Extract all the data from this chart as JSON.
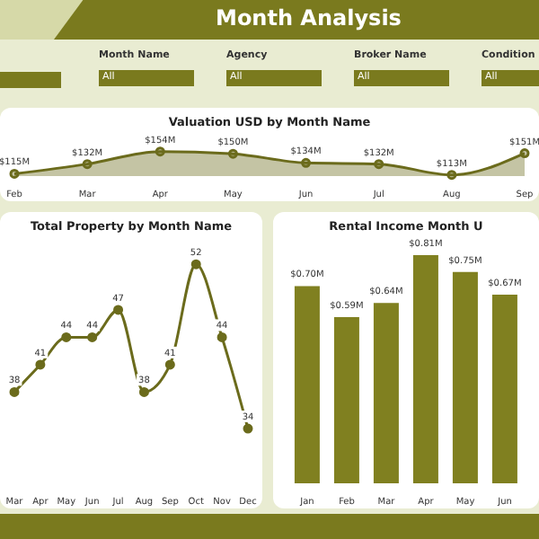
{
  "chart_data": [
    {
      "type": "other",
      "title": "Month Analysis",
      "annotations": [
        "Month Name",
        "All",
        "Agency",
        "All",
        "Broker Name",
        "All",
        "Condition",
        "All"
      ]
    },
    {
      "type": "area",
      "title": "Valuation USD by Month Name",
      "categories": [
        "Feb",
        "Mar",
        "Apr",
        "May",
        "Jun",
        "Jul",
        "Aug",
        "Sep"
      ],
      "values": [
        115,
        132,
        154,
        150,
        134,
        132,
        113,
        151
      ],
      "value_labels": [
        "$115M",
        "$132M",
        "$154M",
        "$150M",
        "$134M",
        "$132M",
        "$113M",
        "$151M"
      ],
      "color": "#6b6b1c",
      "marker": "circle",
      "tick_labels": "x"
    },
    {
      "type": "line",
      "title": "Total Property by Month Name",
      "categories": [
        "Mar",
        "Apr",
        "May",
        "Jun",
        "Jul",
        "Aug",
        "Sep",
        "Oct",
        "Nov",
        "Dec"
      ],
      "values": [
        38,
        41,
        44,
        44,
        47,
        38,
        41,
        52,
        44,
        34
      ],
      "data_labels": true,
      "color": "#6b6b1c",
      "marker": "circle",
      "tick_labels": "x"
    },
    {
      "type": "bar",
      "title": "Rental Income Month U",
      "categories": [
        "Jan",
        "Feb",
        "Mar",
        "Apr",
        "May",
        "Jun"
      ],
      "values": [
        0.7,
        0.59,
        0.64,
        0.81,
        0.75,
        0.67
      ],
      "value_labels": [
        "$0.70M",
        "$0.59M",
        "$0.64M",
        "$0.81M",
        "$0.75M",
        "$0.67M"
      ],
      "color": "#808020",
      "tick_labels": "x"
    }
  ]
}
